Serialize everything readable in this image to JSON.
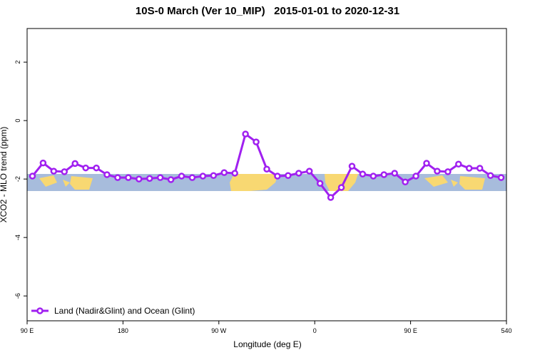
{
  "chart_data": {
    "type": "line",
    "title": "10S-0 March (Ver 10_MIP)   2015-01-01 to 2020-12-31",
    "x_label": "Longitude (deg E)",
    "y_label": "XCO2 - MLO trend (ppm)",
    "x": [
      95,
      105,
      115,
      125,
      135,
      145,
      155,
      165,
      175,
      185,
      195,
      205,
      215,
      225,
      235,
      245,
      255,
      265,
      275,
      285,
      295,
      305,
      315,
      325,
      335,
      345,
      355,
      365,
      375,
      385,
      395,
      405,
      415,
      425,
      435,
      445,
      455,
      465,
      475,
      485,
      495,
      505,
      515,
      525,
      535
    ],
    "series": [
      {
        "name": "Land (Nadir&Glint) and Ocean (Glint)",
        "color": "#a020f0",
        "values": [
          -1.9,
          -1.45,
          -1.73,
          -1.75,
          -1.47,
          -1.62,
          -1.62,
          -1.85,
          -1.95,
          -1.95,
          -2.0,
          -1.98,
          -1.95,
          -2.02,
          -1.9,
          -1.95,
          -1.9,
          -1.88,
          -1.78,
          -1.8,
          -0.46,
          -0.73,
          -1.66,
          -1.9,
          -1.88,
          -1.8,
          -1.73,
          -2.15,
          -2.63,
          -2.29,
          -1.56,
          -1.83,
          -1.9,
          -1.85,
          -1.8,
          -2.1,
          -1.9,
          -1.46,
          -1.73,
          -1.75,
          -1.49,
          -1.63,
          -1.63,
          -1.88,
          -1.95
        ]
      }
    ],
    "xlim": [
      90,
      540
    ],
    "xticks": [
      {
        "value": 90,
        "label": "90 E"
      },
      180,
      {
        "value": 270,
        "label": "90 W"
      },
      {
        "value": 360,
        "label": "0"
      },
      {
        "value": 450,
        "label": "90 E"
      },
      540
    ],
    "ylim": [
      -6.85,
      3.15
    ],
    "yticks": [
      2,
      0,
      -2,
      -4,
      -6
    ],
    "legend": "lower left"
  }
}
